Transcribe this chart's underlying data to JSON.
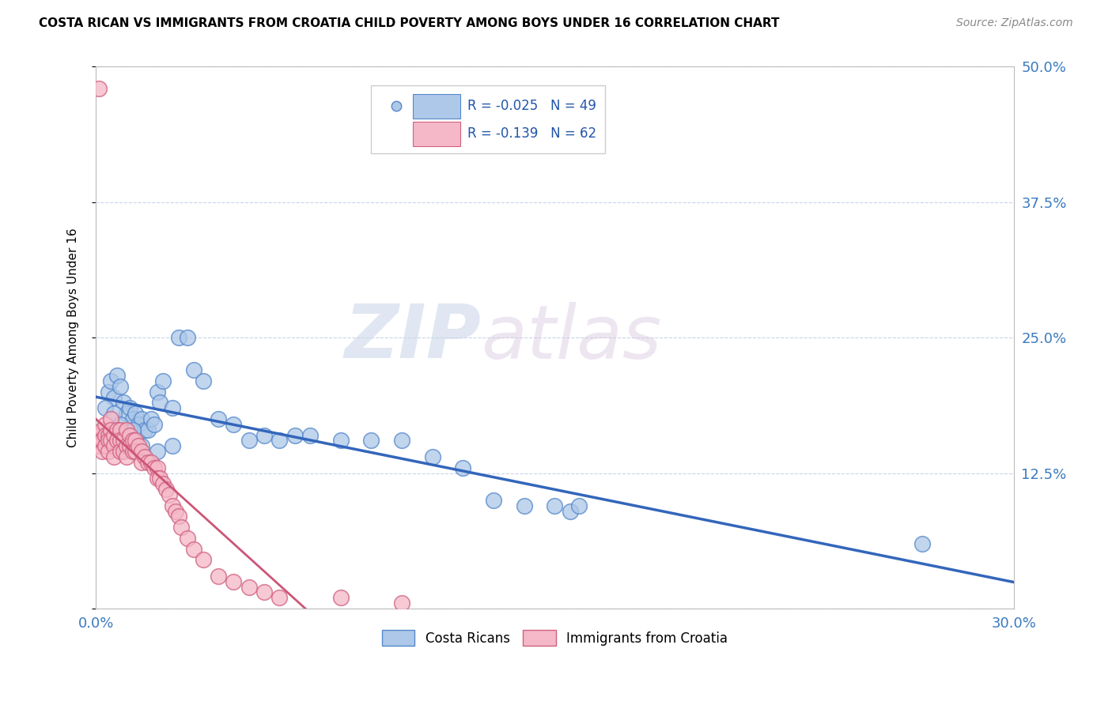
{
  "title": "COSTA RICAN VS IMMIGRANTS FROM CROATIA CHILD POVERTY AMONG BOYS UNDER 16 CORRELATION CHART",
  "source": "Source: ZipAtlas.com",
  "ylabel": "Child Poverty Among Boys Under 16",
  "xlim": [
    0.0,
    0.3
  ],
  "ylim": [
    0.0,
    0.5
  ],
  "xticks": [
    0.0,
    0.05,
    0.1,
    0.15,
    0.2,
    0.25,
    0.3
  ],
  "xtick_labels": [
    "0.0%",
    "",
    "",
    "",
    "",
    "",
    "30.0%"
  ],
  "yticks": [
    0.0,
    0.125,
    0.25,
    0.375,
    0.5
  ],
  "ytick_labels": [
    "",
    "12.5%",
    "25.0%",
    "37.5%",
    "50.0%"
  ],
  "blue_R": -0.025,
  "blue_N": 49,
  "pink_R": -0.139,
  "pink_N": 62,
  "blue_color": "#adc8e8",
  "pink_color": "#f5b8c8",
  "blue_edge": "#5588cc",
  "pink_edge": "#d06080",
  "trend_blue_color": "#3366bb",
  "trend_pink_color": "#cc5577",
  "legend_blue_label": "Costa Ricans",
  "legend_pink_label": "Immigrants from Croatia",
  "watermark_zip": "ZIP",
  "watermark_atlas": "atlas",
  "blue_x": [
    0.004,
    0.005,
    0.006,
    0.007,
    0.008,
    0.009,
    0.01,
    0.011,
    0.012,
    0.013,
    0.014,
    0.015,
    0.016,
    0.017,
    0.018,
    0.019,
    0.02,
    0.021,
    0.022,
    0.025,
    0.027,
    0.03,
    0.032,
    0.035,
    0.04,
    0.045,
    0.05,
    0.055,
    0.06,
    0.065,
    0.07,
    0.08,
    0.09,
    0.1,
    0.11,
    0.12,
    0.13,
    0.14,
    0.15,
    0.155,
    0.158,
    0.27,
    0.003,
    0.006,
    0.008,
    0.012,
    0.015,
    0.02,
    0.025
  ],
  "blue_y": [
    0.2,
    0.21,
    0.195,
    0.215,
    0.205,
    0.19,
    0.18,
    0.185,
    0.175,
    0.18,
    0.17,
    0.175,
    0.165,
    0.165,
    0.175,
    0.17,
    0.2,
    0.19,
    0.21,
    0.185,
    0.25,
    0.25,
    0.22,
    0.21,
    0.175,
    0.17,
    0.155,
    0.16,
    0.155,
    0.16,
    0.16,
    0.155,
    0.155,
    0.155,
    0.14,
    0.13,
    0.1,
    0.095,
    0.095,
    0.09,
    0.095,
    0.06,
    0.185,
    0.18,
    0.17,
    0.165,
    0.15,
    0.145,
    0.15
  ],
  "pink_x": [
    0.001,
    0.001,
    0.001,
    0.002,
    0.002,
    0.002,
    0.003,
    0.003,
    0.003,
    0.004,
    0.004,
    0.004,
    0.005,
    0.005,
    0.005,
    0.006,
    0.006,
    0.006,
    0.007,
    0.007,
    0.008,
    0.008,
    0.008,
    0.009,
    0.009,
    0.01,
    0.01,
    0.01,
    0.011,
    0.011,
    0.012,
    0.012,
    0.013,
    0.013,
    0.014,
    0.015,
    0.015,
    0.016,
    0.017,
    0.018,
    0.019,
    0.02,
    0.02,
    0.021,
    0.022,
    0.023,
    0.024,
    0.025,
    0.026,
    0.027,
    0.028,
    0.03,
    0.032,
    0.035,
    0.04,
    0.045,
    0.05,
    0.055,
    0.06,
    0.08,
    0.1,
    0.001
  ],
  "pink_y": [
    0.16,
    0.155,
    0.15,
    0.165,
    0.155,
    0.145,
    0.17,
    0.16,
    0.15,
    0.16,
    0.155,
    0.145,
    0.175,
    0.165,
    0.155,
    0.16,
    0.15,
    0.14,
    0.165,
    0.155,
    0.165,
    0.155,
    0.145,
    0.155,
    0.145,
    0.165,
    0.15,
    0.14,
    0.16,
    0.15,
    0.155,
    0.145,
    0.155,
    0.145,
    0.15,
    0.145,
    0.135,
    0.14,
    0.135,
    0.135,
    0.13,
    0.13,
    0.12,
    0.12,
    0.115,
    0.11,
    0.105,
    0.095,
    0.09,
    0.085,
    0.075,
    0.065,
    0.055,
    0.045,
    0.03,
    0.025,
    0.02,
    0.015,
    0.01,
    0.01,
    0.005,
    0.48
  ]
}
